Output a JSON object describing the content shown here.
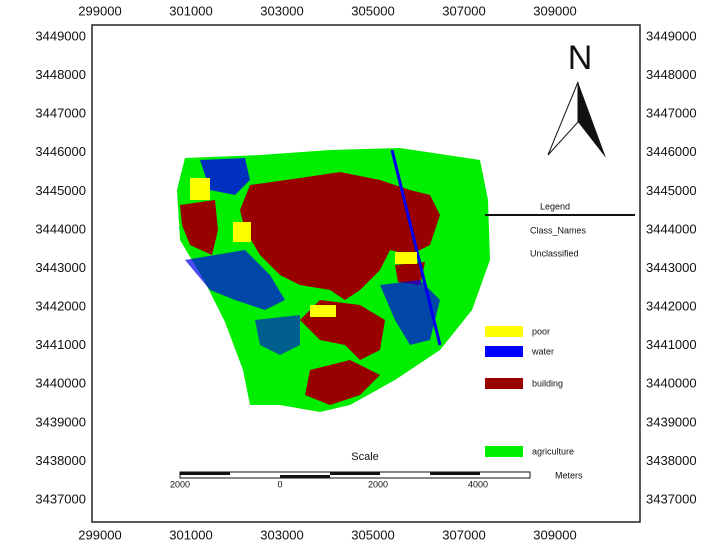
{
  "map": {
    "xticks": [
      299000,
      301000,
      303000,
      305000,
      307000,
      309000
    ],
    "yticks": [
      3449000,
      3448000,
      3447000,
      3446000,
      3445000,
      3444000,
      3443000,
      3442000,
      3441000,
      3440000,
      3439000,
      3438000,
      3437000
    ],
    "north": "N",
    "legend": {
      "title": "Legend",
      "field": "Class_Names",
      "unclassified": "Unclassified",
      "classes": [
        {
          "name": "poor",
          "color": "#ffff00"
        },
        {
          "name": "water",
          "color": "#0000ff"
        },
        {
          "name": "building",
          "color": "#990000"
        },
        {
          "name": "agriculture",
          "color": "#00ee00"
        }
      ]
    },
    "scale": {
      "title": "Scale",
      "labels": [
        "2000",
        "0",
        "2000",
        "4000"
      ],
      "unit": "Meters"
    }
  }
}
